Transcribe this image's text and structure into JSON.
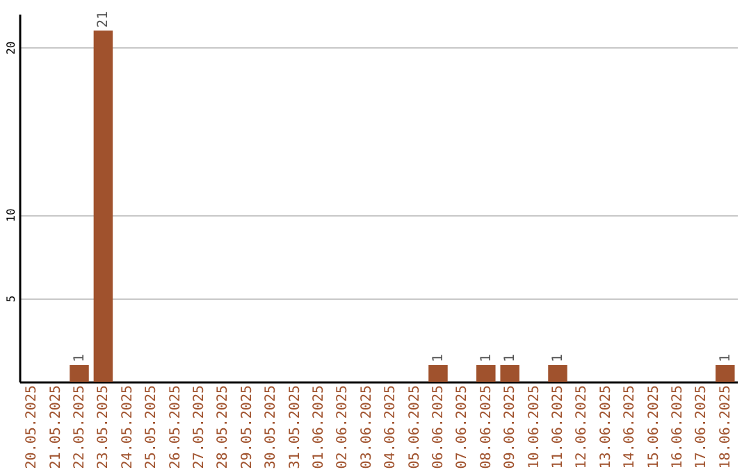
{
  "chart_data": {
    "type": "bar",
    "categories": [
      "20.05.2025",
      "21.05.2025",
      "22.05.2025",
      "23.05.2025",
      "24.05.2025",
      "25.05.2025",
      "26.05.2025",
      "27.05.2025",
      "28.05.2025",
      "29.05.2025",
      "30.05.2025",
      "31.05.2025",
      "01.06.2025",
      "02.06.2025",
      "03.06.2025",
      "04.06.2025",
      "05.06.2025",
      "06.06.2025",
      "07.06.2025",
      "08.06.2025",
      "09.06.2025",
      "10.06.2025",
      "11.06.2025",
      "12.06.2025",
      "13.06.2025",
      "14.06.2025",
      "15.06.2025",
      "16.06.2025",
      "17.06.2025",
      "18.06.2025"
    ],
    "values": [
      0,
      0,
      1,
      21,
      0,
      0,
      0,
      0,
      0,
      0,
      0,
      0,
      0,
      0,
      0,
      0,
      0,
      1,
      0,
      1,
      1,
      0,
      1,
      0,
      0,
      0,
      0,
      0,
      0,
      1
    ],
    "value_labels": [
      null,
      null,
      "1",
      "21",
      null,
      null,
      null,
      null,
      null,
      null,
      null,
      null,
      null,
      null,
      null,
      null,
      null,
      "1",
      null,
      "1",
      "1",
      null,
      "1",
      null,
      null,
      null,
      null,
      null,
      null,
      "1"
    ],
    "color": "#a0522d",
    "ylim": [
      0,
      22
    ],
    "yticks": [
      5,
      10,
      20
    ],
    "grid": "y"
  }
}
